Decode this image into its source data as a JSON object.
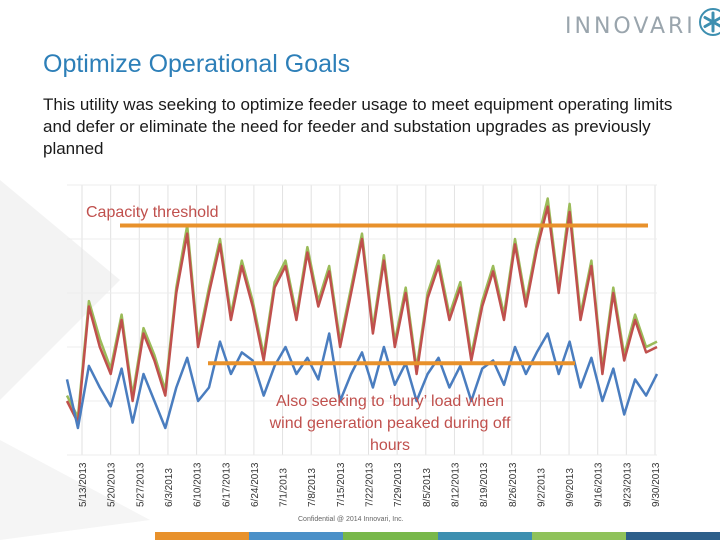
{
  "brand": {
    "logo_text": "INNOVARI"
  },
  "slide": {
    "title": "Optimize Operational Goals",
    "body": "This utility was seeking to optimize feeder usage to meet equipment operating limits and defer or eliminate the need for feeder and substation upgrades as previously planned",
    "footer": "Confidential @ 2014 Innovari, Inc."
  },
  "colors": {
    "title": "#2d7fb8",
    "annotation": "#c0504d",
    "threshold": "#e8912b",
    "footer_segments": [
      "#e8912b",
      "#4a90c8",
      "#78b84a",
      "#3d8fb0",
      "#8fc25a",
      "#2d5f8a"
    ]
  },
  "chart_data": {
    "type": "line",
    "x_tick_labels": [
      "5/13/2013",
      "5/20/2013",
      "5/27/2013",
      "6/3/2013",
      "6/10/2013",
      "6/17/2013",
      "6/24/2013",
      "7/1/2013",
      "7/8/2013",
      "7/15/2013",
      "7/22/2013",
      "7/29/2013",
      "8/5/2013",
      "8/12/2013",
      "8/19/2013",
      "8/26/2013",
      "9/2/2013",
      "9/9/2013",
      "9/16/2013",
      "9/23/2013",
      "9/30/2013"
    ],
    "grid": true,
    "series": [
      {
        "color": "#4a7dbf",
        "values": [
          0.28,
          0.1,
          0.33,
          0.25,
          0.18,
          0.32,
          0.12,
          0.3,
          0.2,
          0.1,
          0.25,
          0.36,
          0.2,
          0.25,
          0.42,
          0.3,
          0.38,
          0.35,
          0.22,
          0.33,
          0.4,
          0.3,
          0.36,
          0.28,
          0.45,
          0.2,
          0.3,
          0.38,
          0.25,
          0.4,
          0.26,
          0.34,
          0.2,
          0.3,
          0.36,
          0.25,
          0.33,
          0.2,
          0.32,
          0.35,
          0.26,
          0.4,
          0.3,
          0.38,
          0.45,
          0.3,
          0.42,
          0.25,
          0.36,
          0.2,
          0.32,
          0.15,
          0.28,
          0.22,
          0.3
        ]
      },
      {
        "color": "#c0504d",
        "values": [
          0.2,
          0.12,
          0.55,
          0.4,
          0.3,
          0.5,
          0.2,
          0.45,
          0.35,
          0.22,
          0.6,
          0.82,
          0.4,
          0.6,
          0.78,
          0.5,
          0.7,
          0.55,
          0.35,
          0.62,
          0.7,
          0.5,
          0.75,
          0.55,
          0.68,
          0.4,
          0.6,
          0.8,
          0.45,
          0.72,
          0.4,
          0.6,
          0.3,
          0.58,
          0.7,
          0.5,
          0.62,
          0.35,
          0.55,
          0.68,
          0.5,
          0.78,
          0.55,
          0.76,
          0.92,
          0.6,
          0.9,
          0.5,
          0.7,
          0.3,
          0.6,
          0.35,
          0.5,
          0.38,
          0.4
        ]
      },
      {
        "color": "#9bbb59",
        "values": [
          0.22,
          0.14,
          0.57,
          0.43,
          0.32,
          0.52,
          0.22,
          0.47,
          0.37,
          0.24,
          0.62,
          0.85,
          0.42,
          0.62,
          0.8,
          0.52,
          0.72,
          0.57,
          0.37,
          0.64,
          0.72,
          0.52,
          0.77,
          0.57,
          0.7,
          0.42,
          0.62,
          0.82,
          0.47,
          0.74,
          0.42,
          0.62,
          0.32,
          0.6,
          0.72,
          0.52,
          0.64,
          0.37,
          0.57,
          0.7,
          0.52,
          0.8,
          0.57,
          0.78,
          0.95,
          0.62,
          0.93,
          0.52,
          0.72,
          0.32,
          0.62,
          0.37,
          0.52,
          0.4,
          0.42
        ]
      }
    ],
    "reference_lines": [
      {
        "label": "Capacity threshold",
        "value": 0.85
      },
      {
        "label": "",
        "value": 0.34
      }
    ],
    "annotations": [
      {
        "text_lines": [
          "Also seeking to ‘bury’ load when",
          "wind generation peaked during off",
          "hours"
        ]
      }
    ]
  }
}
